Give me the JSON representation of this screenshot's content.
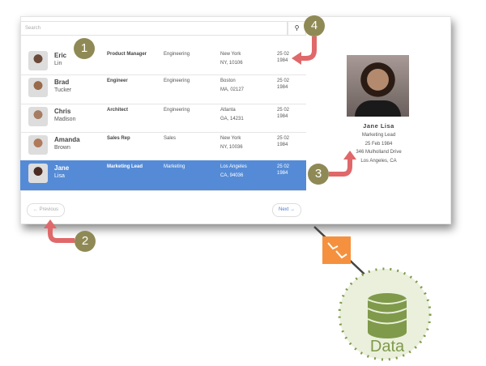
{
  "search": {
    "placeholder": "Search",
    "icon": "search-icon"
  },
  "rows": [
    {
      "first": "Eric",
      "last": "Lin",
      "title": "Product Manager",
      "dept": "Engineering",
      "city": "New York",
      "region": "NY, 10106",
      "date1": "25 02",
      "date2": "1984",
      "selected": false
    },
    {
      "first": "Brad",
      "last": "Tucker",
      "title": "Engineer",
      "dept": "Engineering",
      "city": "Boston",
      "region": "MA, 02127",
      "date1": "25 02",
      "date2": "1984",
      "selected": false
    },
    {
      "first": "Chris",
      "last": "Madison",
      "title": "Architect",
      "dept": "Engineering",
      "city": "Atlanta",
      "region": "GA, 14231",
      "date1": "25 02",
      "date2": "1984",
      "selected": false
    },
    {
      "first": "Amanda",
      "last": "Brown",
      "title": "Sales Rep",
      "dept": "Sales",
      "city": "New York",
      "region": "NY, 10036",
      "date1": "25 02",
      "date2": "1984",
      "selected": false
    },
    {
      "first": "Jane",
      "last": "Lisa",
      "title": "Marketing Lead",
      "dept": "Marketing",
      "city": "Los Angeles",
      "region": "CA, 94036",
      "date1": "25 02",
      "date2": "1984",
      "selected": true
    }
  ],
  "pager": {
    "previous": "← Previous",
    "next": "Next →"
  },
  "detail": {
    "name": "Jane Lisa",
    "title": "Marketing Lead",
    "dob": "25 Feb 1984",
    "address": "346 Mulholland Drive",
    "city": "Los Angeles, CA"
  },
  "badges": [
    "1",
    "2",
    "3",
    "4"
  ],
  "data_label": "Data",
  "colors": {
    "selected": "#558bd6",
    "badge": "#8f8a55",
    "arrow": "#e0686a",
    "data": "#7f9a4a",
    "connector": "#f5913e"
  }
}
